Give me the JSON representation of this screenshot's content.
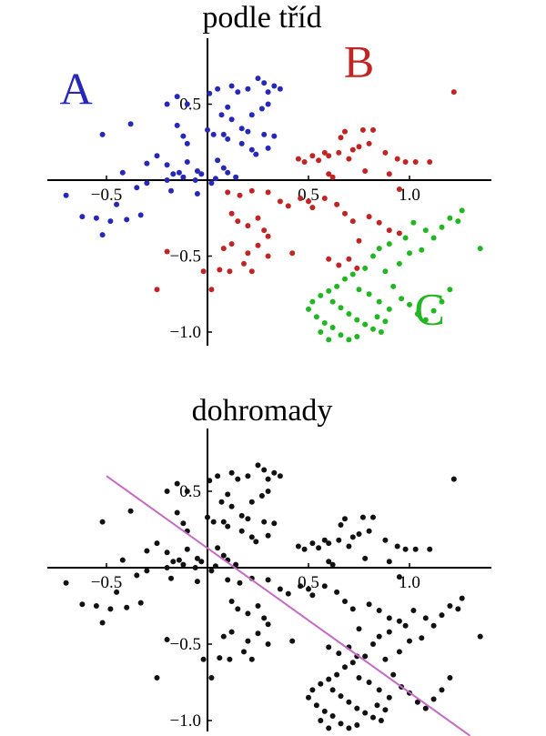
{
  "colors": {
    "A": "#2727b8",
    "B": "#c02424",
    "C": "#22b622",
    "combined": "#111111",
    "boundary": "#c56ac5",
    "axes": "#000000"
  },
  "chart_data": [
    {
      "type": "scatter",
      "title": "podle tříd",
      "xlabel": "",
      "ylabel": "",
      "xlim": [
        -0.8,
        1.4
      ],
      "ylim": [
        -1.1,
        0.95
      ],
      "xticks": [
        -0.5,
        0.5,
        1.0
      ],
      "xtick_labels": [
        "−0.5",
        "0.5",
        "1.0"
      ],
      "yticks": [
        0.5,
        -0.5,
        -1.0
      ],
      "ytick_labels": [
        "0.5",
        "−0.5",
        "−1.0"
      ],
      "grid": false,
      "series": [
        {
          "name": "A",
          "color_key": "A",
          "points": [
            [
              -0.52,
              0.3
            ],
            [
              -0.38,
              0.37
            ],
            [
              -0.2,
              0.5
            ],
            [
              -0.15,
              0.55
            ],
            [
              -0.1,
              0.5
            ],
            [
              0.01,
              0.57
            ],
            [
              0.05,
              0.6
            ],
            [
              0.12,
              0.62
            ],
            [
              0.15,
              0.58
            ],
            [
              0.2,
              0.6
            ],
            [
              0.25,
              0.67
            ],
            [
              0.28,
              0.64
            ],
            [
              0.3,
              0.58
            ],
            [
              0.33,
              0.62
            ],
            [
              0.36,
              0.6
            ],
            [
              0.07,
              0.43
            ],
            [
              0.12,
              0.4
            ],
            [
              0.1,
              0.48
            ],
            [
              0.22,
              0.43
            ],
            [
              0.27,
              0.47
            ],
            [
              0.3,
              0.5
            ],
            [
              0.17,
              0.34
            ],
            [
              0.2,
              0.32
            ],
            [
              0.28,
              0.3
            ],
            [
              0.33,
              0.29
            ],
            [
              0.17,
              0.24
            ],
            [
              0.22,
              0.2
            ],
            [
              0.24,
              0.17
            ],
            [
              0.3,
              0.21
            ],
            [
              0.08,
              0.3
            ],
            [
              0.1,
              0.27
            ],
            [
              0.03,
              0.3
            ],
            [
              0.0,
              0.33
            ],
            [
              -0.15,
              0.36
            ],
            [
              -0.12,
              0.29
            ],
            [
              -0.1,
              0.24
            ],
            [
              -0.3,
              0.11
            ],
            [
              -0.25,
              0.16
            ],
            [
              -0.2,
              0.1
            ],
            [
              -0.14,
              0.05
            ],
            [
              -0.1,
              0.12
            ],
            [
              -0.05,
              0.06
            ],
            [
              -0.2,
              0.0
            ],
            [
              -0.17,
              0.04
            ],
            [
              -0.12,
              0.02
            ],
            [
              -0.06,
              0.0
            ],
            [
              -0.03,
              0.04
            ],
            [
              0.05,
              0.13
            ],
            [
              0.08,
              0.08
            ],
            [
              0.1,
              0.05
            ],
            [
              0.14,
              0.02
            ],
            [
              0.04,
              0.01
            ],
            [
              0.02,
              -0.02
            ],
            [
              -0.35,
              -0.05
            ],
            [
              -0.42,
              0.05
            ],
            [
              -0.3,
              -0.02
            ],
            [
              -0.18,
              -0.07
            ],
            [
              -0.05,
              -0.09
            ],
            [
              -0.7,
              -0.1
            ],
            [
              -0.45,
              -0.16
            ],
            [
              -0.62,
              -0.24
            ],
            [
              -0.55,
              -0.25
            ],
            [
              -0.48,
              -0.27
            ],
            [
              -0.4,
              -0.26
            ],
            [
              -0.33,
              -0.23
            ],
            [
              -0.52,
              -0.36
            ]
          ]
        },
        {
          "name": "B",
          "color_key": "B",
          "points": [
            [
              1.22,
              0.58
            ],
            [
              0.68,
              0.32
            ],
            [
              0.77,
              0.33
            ],
            [
              0.82,
              0.33
            ],
            [
              0.66,
              0.28
            ],
            [
              0.45,
              0.14
            ],
            [
              0.48,
              0.12
            ],
            [
              0.52,
              0.16
            ],
            [
              0.55,
              0.13
            ],
            [
              0.58,
              0.18
            ],
            [
              0.6,
              0.16
            ],
            [
              0.65,
              0.18
            ],
            [
              0.7,
              0.14
            ],
            [
              0.72,
              0.2
            ],
            [
              0.75,
              0.22
            ],
            [
              0.8,
              0.24
            ],
            [
              0.88,
              0.18
            ],
            [
              0.94,
              0.14
            ],
            [
              0.98,
              0.12
            ],
            [
              1.03,
              0.12
            ],
            [
              1.1,
              0.12
            ],
            [
              0.78,
              0.06
            ],
            [
              0.62,
              0.02
            ],
            [
              0.6,
              0.04
            ],
            [
              0.9,
              0.04
            ],
            [
              0.95,
              -0.06
            ],
            [
              0.1,
              -0.08
            ],
            [
              0.16,
              -0.1
            ],
            [
              0.22,
              -0.07
            ],
            [
              0.3,
              -0.08
            ],
            [
              0.36,
              -0.14
            ],
            [
              0.4,
              -0.17
            ],
            [
              0.46,
              -0.12
            ],
            [
              0.5,
              -0.14
            ],
            [
              0.52,
              -0.18
            ],
            [
              0.58,
              -0.12
            ],
            [
              0.64,
              -0.16
            ],
            [
              0.68,
              -0.22
            ],
            [
              0.72,
              -0.27
            ],
            [
              0.8,
              -0.24
            ],
            [
              0.85,
              -0.28
            ],
            [
              0.9,
              -0.33
            ],
            [
              0.95,
              -0.35
            ],
            [
              0.75,
              -0.4
            ],
            [
              0.12,
              -0.22
            ],
            [
              0.15,
              -0.27
            ],
            [
              0.2,
              -0.3
            ],
            [
              0.25,
              -0.25
            ],
            [
              0.28,
              -0.33
            ],
            [
              0.3,
              -0.37
            ],
            [
              0.42,
              -0.48
            ],
            [
              0.6,
              -0.52
            ],
            [
              0.65,
              -0.56
            ],
            [
              0.7,
              -0.52
            ],
            [
              0.74,
              -0.58
            ],
            [
              0.08,
              -0.45
            ],
            [
              0.12,
              -0.42
            ],
            [
              0.2,
              -0.48
            ],
            [
              0.25,
              -0.43
            ],
            [
              0.3,
              -0.5
            ],
            [
              0.18,
              -0.55
            ],
            [
              0.22,
              -0.6
            ],
            [
              -0.2,
              -0.47
            ],
            [
              0.06,
              -0.59
            ],
            [
              0.11,
              -0.6
            ],
            [
              -0.25,
              -0.72
            ],
            [
              -0.02,
              -0.6
            ],
            [
              0.02,
              -0.72
            ]
          ]
        },
        {
          "name": "C",
          "color_key": "C",
          "points": [
            [
              1.35,
              -0.45
            ],
            [
              1.24,
              -0.27
            ],
            [
              1.16,
              -0.31
            ],
            [
              1.08,
              -0.33
            ],
            [
              1.02,
              -0.28
            ],
            [
              0.98,
              -0.38
            ],
            [
              0.9,
              -0.42
            ],
            [
              0.85,
              -0.45
            ],
            [
              0.82,
              -0.5
            ],
            [
              1.26,
              -0.2
            ],
            [
              1.2,
              -0.25
            ],
            [
              1.12,
              -0.38
            ],
            [
              1.06,
              -0.46
            ],
            [
              1.0,
              -0.48
            ],
            [
              0.95,
              -0.55
            ],
            [
              0.88,
              -0.6
            ],
            [
              0.78,
              -0.58
            ],
            [
              0.72,
              -0.62
            ],
            [
              0.68,
              -0.65
            ],
            [
              0.64,
              -0.7
            ],
            [
              0.6,
              -0.73
            ],
            [
              0.56,
              -0.76
            ],
            [
              0.52,
              -0.8
            ],
            [
              0.5,
              -0.85
            ],
            [
              0.62,
              -0.8
            ],
            [
              0.66,
              -0.84
            ],
            [
              0.7,
              -0.88
            ],
            [
              0.74,
              -0.92
            ],
            [
              0.78,
              -0.95
            ],
            [
              0.82,
              -0.98
            ],
            [
              0.86,
              -1.0
            ],
            [
              0.54,
              -0.9
            ],
            [
              0.58,
              -0.94
            ],
            [
              0.62,
              -0.97
            ],
            [
              0.66,
              -1.02
            ],
            [
              0.7,
              -1.05
            ],
            [
              0.74,
              -1.03
            ],
            [
              0.56,
              -1.0
            ],
            [
              0.6,
              -1.05
            ],
            [
              0.92,
              -0.7
            ],
            [
              0.96,
              -0.78
            ],
            [
              1.0,
              -0.82
            ],
            [
              1.04,
              -0.88
            ],
            [
              1.08,
              -0.92
            ],
            [
              1.12,
              -0.86
            ],
            [
              1.16,
              -0.8
            ],
            [
              1.2,
              -0.72
            ],
            [
              0.75,
              -0.72
            ],
            [
              0.8,
              -0.75
            ],
            [
              0.85,
              -0.8
            ],
            [
              0.9,
              -0.85
            ],
            [
              0.88,
              -0.93
            ],
            [
              0.84,
              -0.9
            ]
          ]
        }
      ],
      "annotations": [
        {
          "text": "A",
          "color_key": "A",
          "x": -0.65,
          "y": 0.5
        },
        {
          "text": "B",
          "color_key": "B",
          "x": 0.75,
          "y": 0.68
        },
        {
          "text": "C",
          "color_key": "C",
          "x": 1.1,
          "y": -0.95
        }
      ]
    },
    {
      "type": "scatter",
      "title": "dohromady",
      "xlabel": "",
      "ylabel": "",
      "xlim": [
        -0.8,
        1.4
      ],
      "ylim": [
        -1.1,
        0.95
      ],
      "xticks": [
        -0.5,
        0.5,
        1.0
      ],
      "xtick_labels": [
        "−0.5",
        "0.5",
        "1.0"
      ],
      "yticks": [
        0.5,
        -0.5,
        -1.0
      ],
      "ytick_labels": [
        "0.5",
        "−0.5",
        "−1.0"
      ],
      "grid": false,
      "series": [
        {
          "name": "",
          "color_key": "combined",
          "points_from": [
            "A",
            "B",
            "C"
          ]
        }
      ],
      "lines": [
        {
          "color_key": "boundary",
          "from": [
            -0.5,
            0.6
          ],
          "to": [
            1.3,
            -1.1
          ]
        }
      ]
    }
  ]
}
